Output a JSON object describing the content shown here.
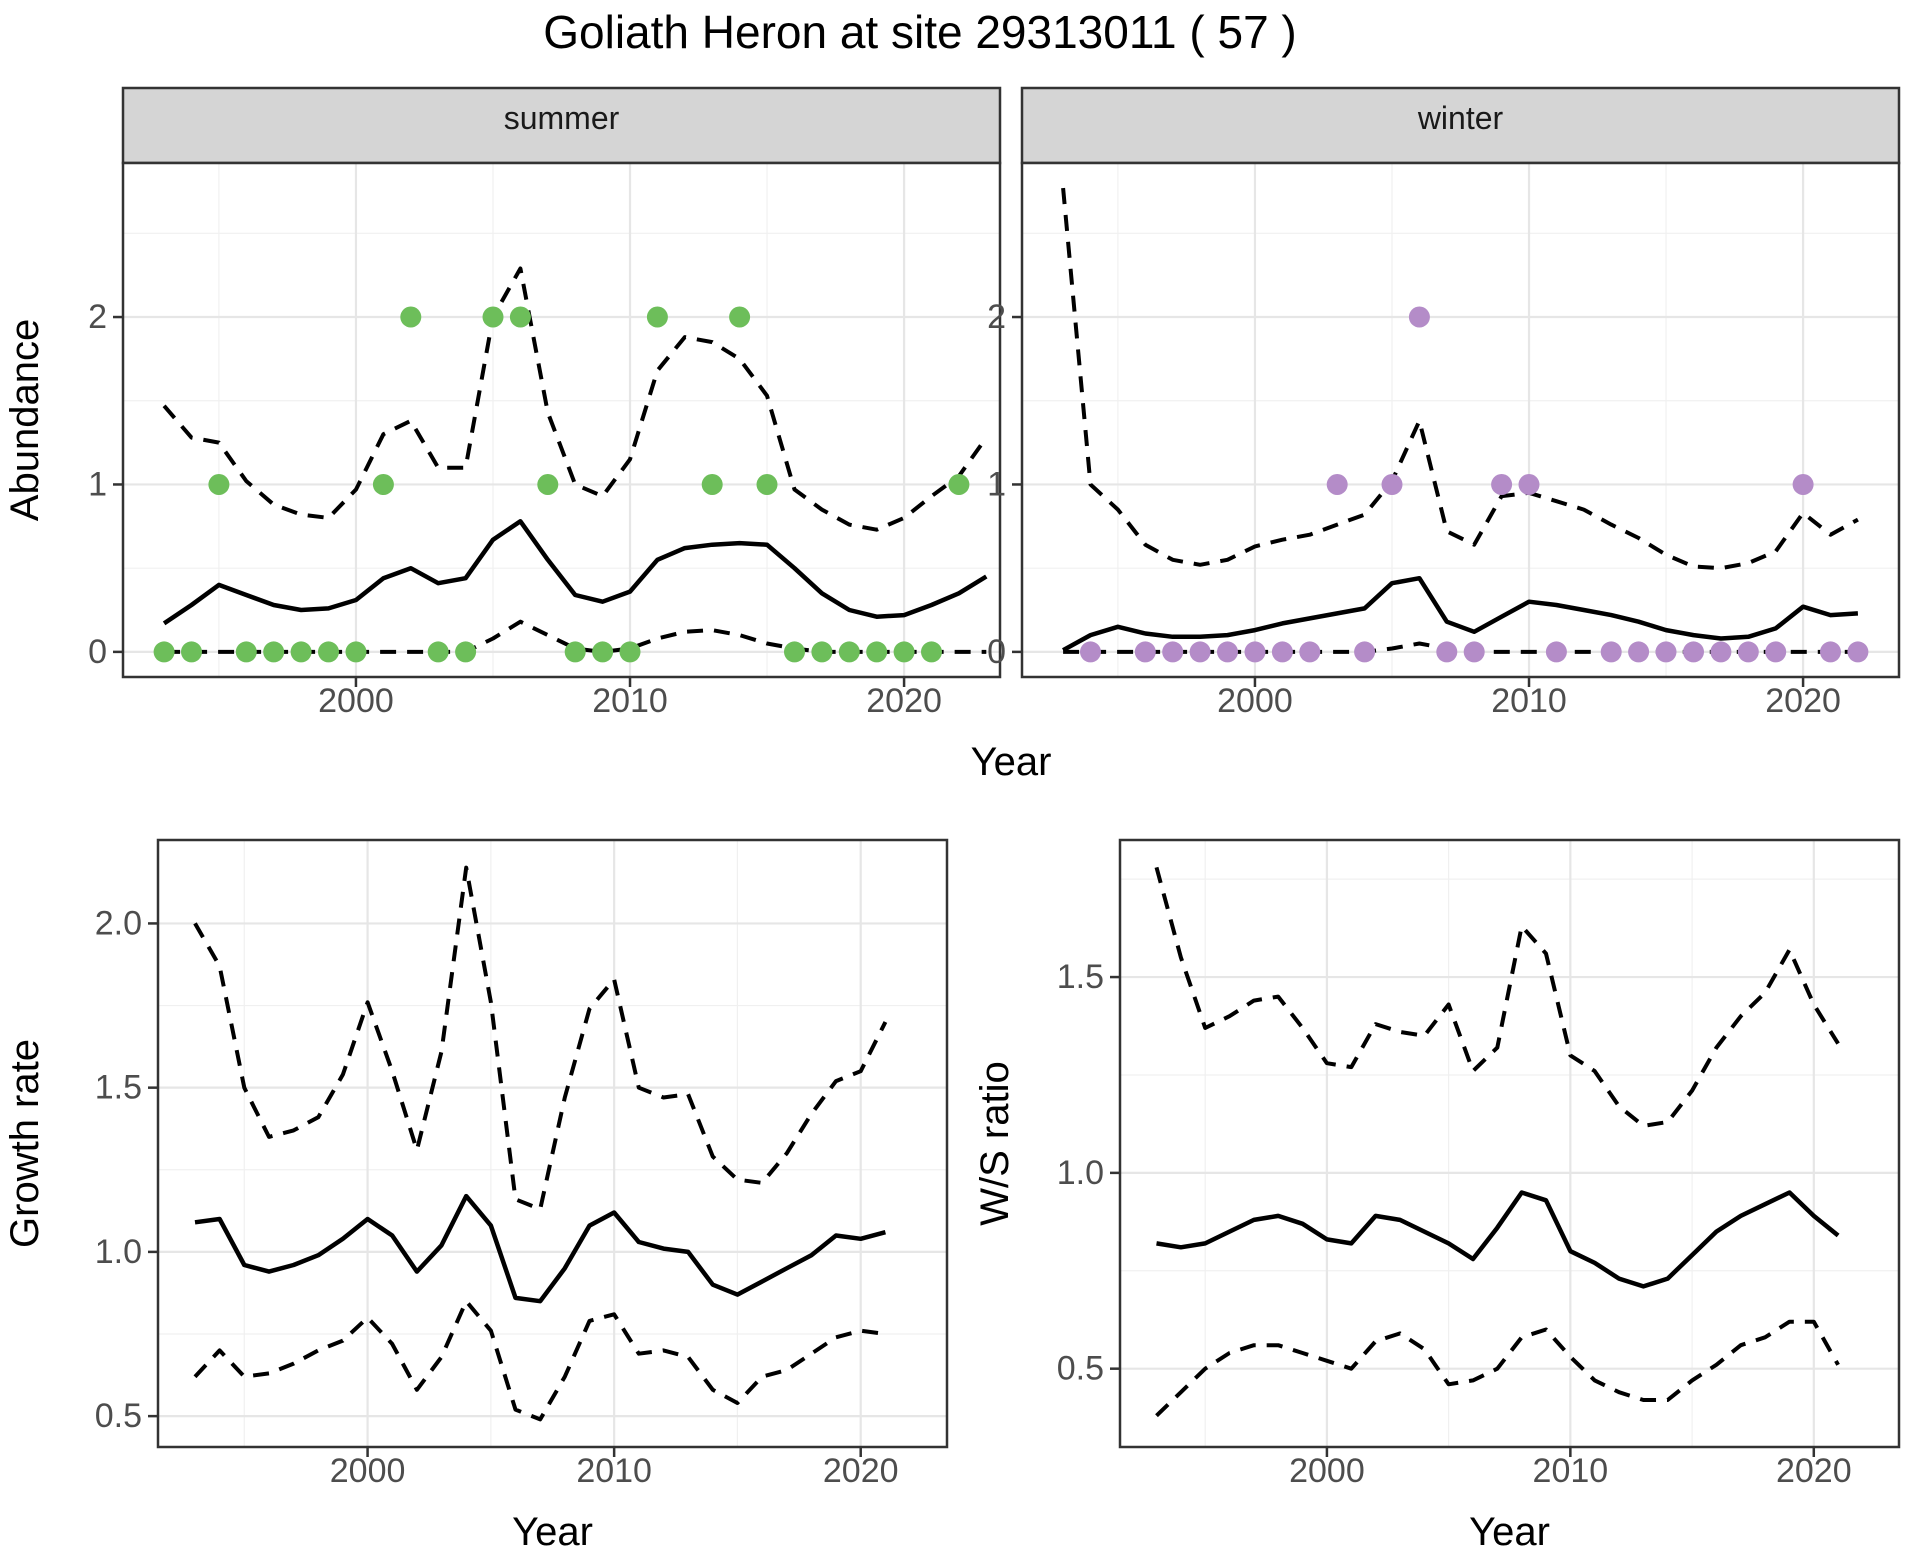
{
  "title": "Goliath Heron at site 29313011 ( 57 )",
  "colors": {
    "summer_point": "#6dbe5a",
    "winter_point": "#b48cc8",
    "line": "#000000",
    "strip_bg": "#d5d5d5",
    "panel_border": "#333333",
    "grid_major": "#e6e6e6",
    "grid_minor": "#f0f0f0",
    "axis_text": "#4d4d4d",
    "axis_title": "#000000"
  },
  "chart_data": [
    {
      "type": "line",
      "facet_label": "summer",
      "xlabel": "Year",
      "ylabel": "Abundance",
      "xlim": [
        1991.5,
        2023.5
      ],
      "ylim": [
        -0.15,
        2.92
      ],
      "xticks": [
        2000,
        2010,
        2020
      ],
      "xtick_labels": [
        "2000",
        "2010",
        "2020"
      ],
      "yticks": [
        0,
        1,
        2
      ],
      "ytick_labels": [
        "0",
        "1",
        "2"
      ],
      "grid": "on",
      "legend": "none",
      "years": [
        1993,
        1994,
        1995,
        1996,
        1997,
        1998,
        1999,
        2000,
        2001,
        2002,
        2003,
        2004,
        2005,
        2006,
        2007,
        2008,
        2009,
        2010,
        2011,
        2012,
        2013,
        2014,
        2015,
        2016,
        2017,
        2018,
        2019,
        2020,
        2021,
        2022,
        2023
      ],
      "series": [
        {
          "name": "median",
          "style": "solid",
          "values": [
            0.17,
            0.28,
            0.4,
            0.34,
            0.28,
            0.25,
            0.26,
            0.31,
            0.44,
            0.5,
            0.41,
            0.44,
            0.67,
            0.78,
            0.55,
            0.34,
            0.3,
            0.36,
            0.55,
            0.62,
            0.64,
            0.65,
            0.64,
            0.5,
            0.35,
            0.25,
            0.21,
            0.22,
            0.28,
            0.35,
            0.45
          ]
        },
        {
          "name": "upper_ci",
          "style": "dashed",
          "values": [
            1.47,
            1.28,
            1.25,
            1.02,
            0.88,
            0.82,
            0.8,
            0.97,
            1.3,
            1.38,
            1.1,
            1.1,
            2.0,
            2.29,
            1.43,
            1.0,
            0.93,
            1.15,
            1.68,
            1.88,
            1.85,
            1.75,
            1.53,
            0.97,
            0.85,
            0.76,
            0.73,
            0.8,
            0.93,
            1.05,
            1.28
          ]
        },
        {
          "name": "lower_ci",
          "style": "dashed",
          "values": [
            0,
            0,
            0,
            0,
            0,
            0,
            0,
            0,
            0,
            0,
            0,
            0,
            0.08,
            0.18,
            0.1,
            0.02,
            0,
            0.02,
            0.08,
            0.12,
            0.13,
            0.1,
            0.05,
            0.02,
            0,
            0,
            0,
            0,
            0,
            0,
            0
          ]
        }
      ],
      "points": {
        "name": "observed_counts",
        "color_key": "summer_point",
        "data": [
          [
            1993,
            0
          ],
          [
            1994,
            0
          ],
          [
            1995,
            1
          ],
          [
            1996,
            0
          ],
          [
            1997,
            0
          ],
          [
            1998,
            0
          ],
          [
            1999,
            0
          ],
          [
            2000,
            0
          ],
          [
            2001,
            1
          ],
          [
            2002,
            2
          ],
          [
            2003,
            0
          ],
          [
            2004,
            0
          ],
          [
            2005,
            2
          ],
          [
            2006,
            2
          ],
          [
            2007,
            1
          ],
          [
            2008,
            0
          ],
          [
            2009,
            0
          ],
          [
            2010,
            0
          ],
          [
            2011,
            2
          ],
          [
            2013,
            1
          ],
          [
            2014,
            2
          ],
          [
            2015,
            1
          ],
          [
            2016,
            0
          ],
          [
            2017,
            0
          ],
          [
            2018,
            0
          ],
          [
            2019,
            0
          ],
          [
            2020,
            0
          ],
          [
            2021,
            0
          ],
          [
            2022,
            1
          ]
        ]
      }
    },
    {
      "type": "line",
      "facet_label": "winter",
      "xlabel": "Year",
      "ylabel": "Abundance",
      "xlim": [
        1991.5,
        2023.5
      ],
      "ylim": [
        -0.15,
        2.92
      ],
      "xticks": [
        2000,
        2010,
        2020
      ],
      "xtick_labels": [
        "2000",
        "2010",
        "2020"
      ],
      "yticks": [
        0,
        1,
        2
      ],
      "ytick_labels": [
        "0",
        "1",
        "2"
      ],
      "grid": "on",
      "legend": "none",
      "years": [
        1993,
        1994,
        1995,
        1996,
        1997,
        1998,
        1999,
        2000,
        2001,
        2002,
        2003,
        2004,
        2005,
        2006,
        2007,
        2008,
        2009,
        2010,
        2011,
        2012,
        2013,
        2014,
        2015,
        2016,
        2017,
        2018,
        2019,
        2020,
        2021,
        2022
      ],
      "series": [
        {
          "name": "median",
          "style": "solid",
          "values": [
            0.01,
            0.1,
            0.15,
            0.11,
            0.09,
            0.09,
            0.1,
            0.13,
            0.17,
            0.2,
            0.23,
            0.26,
            0.41,
            0.44,
            0.18,
            0.12,
            0.21,
            0.3,
            0.28,
            0.25,
            0.22,
            0.18,
            0.13,
            0.1,
            0.08,
            0.09,
            0.14,
            0.27,
            0.22,
            0.23
          ]
        },
        {
          "name": "upper_ci",
          "style": "dashed",
          "values": [
            2.77,
            1.0,
            0.85,
            0.64,
            0.55,
            0.52,
            0.55,
            0.63,
            0.67,
            0.7,
            0.76,
            0.82,
            1.02,
            1.38,
            0.72,
            0.64,
            0.93,
            0.95,
            0.9,
            0.85,
            0.76,
            0.68,
            0.58,
            0.51,
            0.5,
            0.53,
            0.6,
            0.83,
            0.7,
            0.79
          ]
        },
        {
          "name": "lower_ci",
          "style": "dashed",
          "values": [
            0,
            0,
            0,
            0,
            0,
            0,
            0,
            0,
            0,
            0,
            0,
            0,
            0.02,
            0.05,
            0.02,
            0,
            0,
            0,
            0,
            0,
            0,
            0,
            0,
            0,
            0,
            0,
            0,
            0,
            0,
            0
          ]
        }
      ],
      "points": {
        "name": "observed_counts",
        "color_key": "winter_point",
        "data": [
          [
            1994,
            0
          ],
          [
            1996,
            0
          ],
          [
            1997,
            0
          ],
          [
            1998,
            0
          ],
          [
            1999,
            0
          ],
          [
            2000,
            0
          ],
          [
            2001,
            0
          ],
          [
            2002,
            0
          ],
          [
            2003,
            1
          ],
          [
            2004,
            0
          ],
          [
            2005,
            1
          ],
          [
            2006,
            2
          ],
          [
            2007,
            0
          ],
          [
            2008,
            0
          ],
          [
            2009,
            1
          ],
          [
            2010,
            1
          ],
          [
            2011,
            0
          ],
          [
            2013,
            0
          ],
          [
            2014,
            0
          ],
          [
            2015,
            0
          ],
          [
            2016,
            0
          ],
          [
            2017,
            0
          ],
          [
            2018,
            0
          ],
          [
            2019,
            0
          ],
          [
            2020,
            1
          ],
          [
            2021,
            0
          ],
          [
            2022,
            0
          ]
        ]
      }
    },
    {
      "type": "line",
      "facet_label": "",
      "xlabel": "Year",
      "ylabel": "Growth rate",
      "xlim": [
        1991.5,
        2023.5
      ],
      "ylim": [
        0.406,
        2.254
      ],
      "xticks": [
        2000,
        2010,
        2020
      ],
      "xtick_labels": [
        "2000",
        "2010",
        "2020"
      ],
      "yticks": [
        0.5,
        1.0,
        1.5,
        2.0
      ],
      "ytick_labels": [
        "0.5",
        "1.0",
        "1.5",
        "2.0"
      ],
      "grid": "on",
      "legend": "none",
      "years": [
        1993,
        1994,
        1995,
        1996,
        1997,
        1998,
        1999,
        2000,
        2001,
        2002,
        2003,
        2004,
        2005,
        2006,
        2007,
        2008,
        2009,
        2010,
        2011,
        2012,
        2013,
        2014,
        2015,
        2016,
        2017,
        2018,
        2019,
        2020,
        2021
      ],
      "series": [
        {
          "name": "median",
          "style": "solid",
          "values": [
            1.09,
            1.1,
            0.96,
            0.94,
            0.96,
            0.99,
            1.04,
            1.1,
            1.05,
            0.94,
            1.02,
            1.17,
            1.08,
            0.86,
            0.85,
            0.95,
            1.08,
            1.12,
            1.03,
            1.01,
            1.0,
            0.9,
            0.87,
            0.91,
            0.95,
            0.99,
            1.05,
            1.04,
            1.06
          ]
        },
        {
          "name": "upper_ci",
          "style": "dashed",
          "values": [
            2.0,
            1.87,
            1.5,
            1.35,
            1.37,
            1.41,
            1.54,
            1.76,
            1.55,
            1.31,
            1.61,
            2.17,
            1.76,
            1.16,
            1.13,
            1.47,
            1.74,
            1.83,
            1.5,
            1.47,
            1.48,
            1.29,
            1.22,
            1.21,
            1.3,
            1.42,
            1.52,
            1.55,
            1.7
          ]
        },
        {
          "name": "lower_ci",
          "style": "dashed",
          "values": [
            0.62,
            0.7,
            0.62,
            0.63,
            0.66,
            0.7,
            0.73,
            0.8,
            0.72,
            0.58,
            0.68,
            0.85,
            0.76,
            0.52,
            0.49,
            0.62,
            0.79,
            0.81,
            0.69,
            0.7,
            0.68,
            0.58,
            0.54,
            0.62,
            0.64,
            0.69,
            0.74,
            0.76,
            0.75
          ]
        }
      ],
      "points": null
    },
    {
      "type": "line",
      "facet_label": "",
      "xlabel": "Year",
      "ylabel": "W/S ratio",
      "xlim": [
        1991.5,
        2023.5
      ],
      "ylim": [
        0.3,
        1.85
      ],
      "xticks": [
        2000,
        2010,
        2020
      ],
      "xtick_labels": [
        "2000",
        "2010",
        "2020"
      ],
      "yticks": [
        0.5,
        1.0,
        1.5
      ],
      "ytick_labels": [
        "0.5",
        "1.0",
        "1.5"
      ],
      "grid": "on",
      "legend": "none",
      "years": [
        1993,
        1994,
        1995,
        1996,
        1997,
        1998,
        1999,
        2000,
        2001,
        2002,
        2003,
        2004,
        2005,
        2006,
        2007,
        2008,
        2009,
        2010,
        2011,
        2012,
        2013,
        2014,
        2015,
        2016,
        2017,
        2018,
        2019,
        2020,
        2021
      ],
      "series": [
        {
          "name": "median",
          "style": "solid",
          "values": [
            0.82,
            0.81,
            0.82,
            0.85,
            0.88,
            0.89,
            0.87,
            0.83,
            0.82,
            0.89,
            0.88,
            0.85,
            0.82,
            0.78,
            0.86,
            0.95,
            0.93,
            0.8,
            0.77,
            0.73,
            0.71,
            0.73,
            0.79,
            0.85,
            0.89,
            0.92,
            0.95,
            0.89,
            0.84
          ]
        },
        {
          "name": "upper_ci",
          "style": "dashed",
          "values": [
            1.78,
            1.55,
            1.37,
            1.4,
            1.44,
            1.45,
            1.37,
            1.28,
            1.27,
            1.38,
            1.36,
            1.35,
            1.43,
            1.26,
            1.32,
            1.63,
            1.56,
            1.3,
            1.26,
            1.17,
            1.12,
            1.13,
            1.21,
            1.32,
            1.4,
            1.46,
            1.57,
            1.43,
            1.33
          ]
        },
        {
          "name": "lower_ci",
          "style": "dashed",
          "values": [
            0.38,
            0.44,
            0.5,
            0.54,
            0.56,
            0.56,
            0.54,
            0.52,
            0.5,
            0.57,
            0.59,
            0.55,
            0.46,
            0.47,
            0.5,
            0.58,
            0.6,
            0.53,
            0.47,
            0.44,
            0.42,
            0.42,
            0.47,
            0.51,
            0.56,
            0.58,
            0.62,
            0.62,
            0.51
          ]
        }
      ],
      "points": null
    }
  ]
}
